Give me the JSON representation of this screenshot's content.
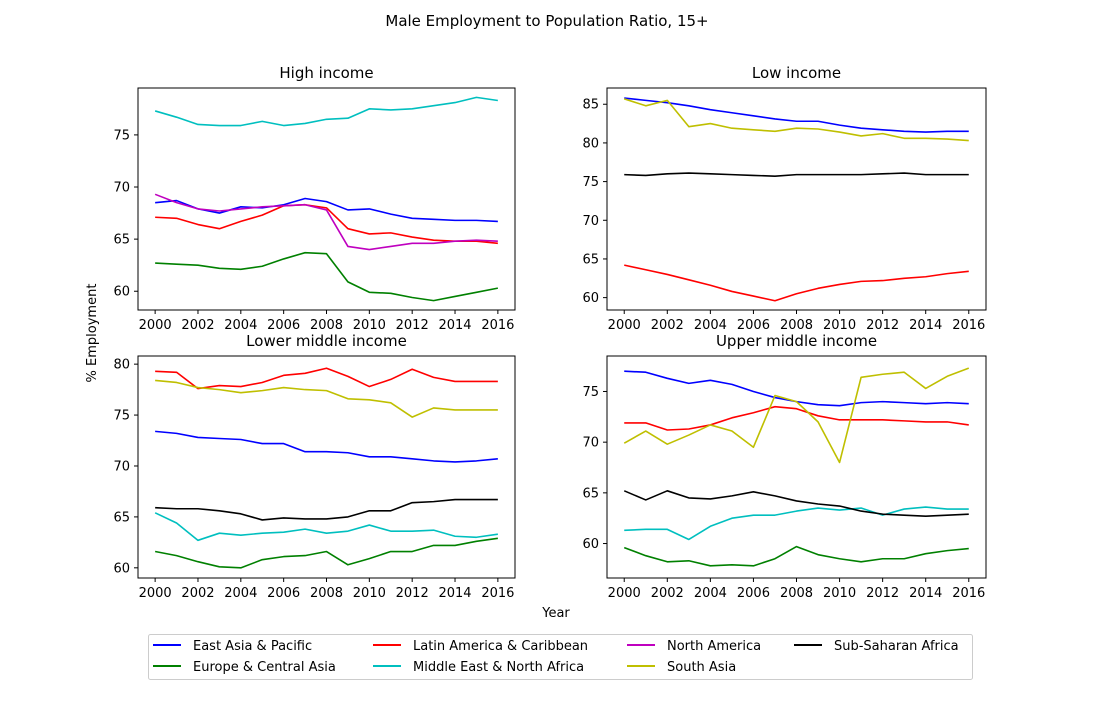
{
  "chart_data": {
    "type": "line",
    "title": "Male Employment to Population Ratio, 15+",
    "xlabel": "Year",
    "ylabel": "% Employment",
    "legend_position": "bottom",
    "legend_columns": 4,
    "legend": [
      {
        "name": "East Asia & Pacific",
        "color": "#0000ff"
      },
      {
        "name": "Europe & Central Asia",
        "color": "#008000"
      },
      {
        "name": "Latin America & Caribbean",
        "color": "#ff0000"
      },
      {
        "name": "Middle East & North Africa",
        "color": "#00bfbf"
      },
      {
        "name": "North America",
        "color": "#bf00bf"
      },
      {
        "name": "South Asia",
        "color": "#bfbf00"
      },
      {
        "name": "Sub-Saharan Africa",
        "color": "#000000"
      }
    ],
    "panels": [
      {
        "title": "High income",
        "x": [
          2000,
          2001,
          2002,
          2003,
          2004,
          2005,
          2006,
          2007,
          2008,
          2009,
          2010,
          2011,
          2012,
          2013,
          2014,
          2015,
          2016
        ],
        "xlim": [
          1999.2,
          2016.8
        ],
        "ylim": [
          58.2,
          79.5
        ],
        "yticks": [
          60,
          65,
          70,
          75
        ],
        "xticks": [
          2000,
          2002,
          2004,
          2006,
          2008,
          2010,
          2012,
          2014,
          2016
        ],
        "series": [
          {
            "name": "East Asia & Pacific",
            "values": [
              68.5,
              68.7,
              67.9,
              67.5,
              68.1,
              68.0,
              68.3,
              68.9,
              68.6,
              67.8,
              67.9,
              67.4,
              67.0,
              66.9,
              66.8,
              66.8,
              66.7
            ]
          },
          {
            "name": "Europe & Central Asia",
            "values": [
              62.7,
              62.6,
              62.5,
              62.2,
              62.1,
              62.4,
              63.1,
              63.7,
              63.6,
              60.9,
              59.9,
              59.8,
              59.4,
              59.1,
              59.5,
              59.9,
              60.3
            ]
          },
          {
            "name": "Latin America & Caribbean",
            "values": [
              67.1,
              67.0,
              66.4,
              66.0,
              66.7,
              67.3,
              68.2,
              68.3,
              68.0,
              66.0,
              65.5,
              65.6,
              65.2,
              64.9,
              64.8,
              64.8,
              64.6
            ]
          },
          {
            "name": "Middle East & North Africa",
            "values": [
              77.3,
              76.7,
              76.0,
              75.9,
              75.9,
              76.3,
              75.9,
              76.1,
              76.5,
              76.6,
              77.5,
              77.4,
              77.5,
              77.8,
              78.1,
              78.6,
              78.3
            ]
          },
          {
            "name": "North America",
            "values": [
              69.3,
              68.5,
              67.9,
              67.7,
              67.9,
              68.1,
              68.2,
              68.3,
              67.8,
              64.3,
              64.0,
              64.3,
              64.6,
              64.6,
              64.8,
              64.9,
              64.8
            ]
          }
        ]
      },
      {
        "title": "Low income",
        "x": [
          2000,
          2001,
          2002,
          2003,
          2004,
          2005,
          2006,
          2007,
          2008,
          2009,
          2010,
          2011,
          2012,
          2013,
          2014,
          2015,
          2016
        ],
        "xlim": [
          1999.2,
          2016.8
        ],
        "ylim": [
          58.4,
          87.1
        ],
        "yticks": [
          60,
          65,
          70,
          75,
          80,
          85
        ],
        "xticks": [
          2000,
          2002,
          2004,
          2006,
          2008,
          2010,
          2012,
          2014,
          2016
        ],
        "series": [
          {
            "name": "East Asia & Pacific",
            "values": [
              85.8,
              85.5,
              85.2,
              84.8,
              84.3,
              83.9,
              83.5,
              83.1,
              82.8,
              82.8,
              82.3,
              81.9,
              81.7,
              81.5,
              81.4,
              81.5,
              81.5
            ]
          },
          {
            "name": "Latin America & Caribbean",
            "values": [
              64.2,
              63.6,
              63.0,
              62.3,
              61.6,
              60.8,
              60.2,
              59.6,
              60.5,
              61.2,
              61.7,
              62.1,
              62.2,
              62.5,
              62.7,
              63.1,
              63.4
            ]
          },
          {
            "name": "South Asia",
            "values": [
              85.7,
              84.8,
              85.5,
              82.1,
              82.5,
              81.9,
              81.7,
              81.5,
              81.9,
              81.8,
              81.4,
              80.9,
              81.2,
              80.6,
              80.6,
              80.5,
              80.3
            ]
          },
          {
            "name": "Sub-Saharan Africa",
            "values": [
              75.9,
              75.8,
              76.0,
              76.1,
              76.0,
              75.9,
              75.8,
              75.7,
              75.9,
              75.9,
              75.9,
              75.9,
              76.0,
              76.1,
              75.9,
              75.9,
              75.9
            ]
          }
        ]
      },
      {
        "title": "Lower middle income",
        "x": [
          2000,
          2001,
          2002,
          2003,
          2004,
          2005,
          2006,
          2007,
          2008,
          2009,
          2010,
          2011,
          2012,
          2013,
          2014,
          2015,
          2016
        ],
        "xlim": [
          1999.2,
          2016.8
        ],
        "ylim": [
          59.0,
          80.8
        ],
        "yticks": [
          60,
          65,
          70,
          75,
          80
        ],
        "xticks": [
          2000,
          2002,
          2004,
          2006,
          2008,
          2010,
          2012,
          2014,
          2016
        ],
        "series": [
          {
            "name": "East Asia & Pacific",
            "values": [
              73.4,
              73.2,
              72.8,
              72.7,
              72.6,
              72.2,
              72.2,
              71.4,
              71.4,
              71.3,
              70.9,
              70.9,
              70.7,
              70.5,
              70.4,
              70.5,
              70.7
            ]
          },
          {
            "name": "Europe & Central Asia",
            "values": [
              61.6,
              61.2,
              60.6,
              60.1,
              60.0,
              60.8,
              61.1,
              61.2,
              61.6,
              60.3,
              60.9,
              61.6,
              61.6,
              62.2,
              62.2,
              62.6,
              62.9
            ]
          },
          {
            "name": "Latin America & Caribbean",
            "values": [
              79.3,
              79.2,
              77.6,
              77.9,
              77.8,
              78.2,
              78.9,
              79.1,
              79.6,
              78.8,
              77.8,
              78.5,
              79.5,
              78.7,
              78.3,
              78.3,
              78.3
            ]
          },
          {
            "name": "Middle East & North Africa",
            "values": [
              65.4,
              64.4,
              62.7,
              63.4,
              63.2,
              63.4,
              63.5,
              63.8,
              63.4,
              63.6,
              64.2,
              63.6,
              63.6,
              63.7,
              63.1,
              63.0,
              63.3
            ]
          },
          {
            "name": "South Asia",
            "values": [
              78.4,
              78.2,
              77.7,
              77.5,
              77.2,
              77.4,
              77.7,
              77.5,
              77.4,
              76.6,
              76.5,
              76.2,
              74.8,
              75.7,
              75.5,
              75.5,
              75.5
            ]
          },
          {
            "name": "Sub-Saharan Africa",
            "values": [
              65.9,
              65.8,
              65.8,
              65.6,
              65.3,
              64.7,
              64.9,
              64.8,
              64.8,
              65.0,
              65.6,
              65.6,
              66.4,
              66.5,
              66.7,
              66.7,
              66.7
            ]
          }
        ]
      },
      {
        "title": "Upper middle income",
        "x": [
          2000,
          2001,
          2002,
          2003,
          2004,
          2005,
          2006,
          2007,
          2008,
          2009,
          2010,
          2011,
          2012,
          2013,
          2014,
          2015,
          2016
        ],
        "xlim": [
          1999.2,
          2016.8
        ],
        "ylim": [
          56.6,
          78.5
        ],
        "yticks": [
          60,
          65,
          70,
          75
        ],
        "xticks": [
          2000,
          2002,
          2004,
          2006,
          2008,
          2010,
          2012,
          2014,
          2016
        ],
        "series": [
          {
            "name": "East Asia & Pacific",
            "values": [
              77.0,
              76.9,
              76.3,
              75.8,
              76.1,
              75.7,
              75.0,
              74.4,
              74.0,
              73.7,
              73.6,
              73.9,
              74.0,
              73.9,
              73.8,
              73.9,
              73.8
            ]
          },
          {
            "name": "Europe & Central Asia",
            "values": [
              59.6,
              58.8,
              58.2,
              58.3,
              57.8,
              57.9,
              57.8,
              58.5,
              59.7,
              58.9,
              58.5,
              58.2,
              58.5,
              58.5,
              59.0,
              59.3,
              59.5
            ]
          },
          {
            "name": "Latin America & Caribbean",
            "values": [
              71.9,
              71.9,
              71.2,
              71.3,
              71.7,
              72.4,
              72.9,
              73.5,
              73.3,
              72.6,
              72.2,
              72.2,
              72.2,
              72.1,
              72.0,
              72.0,
              71.7
            ]
          },
          {
            "name": "Middle East & North Africa",
            "values": [
              61.3,
              61.4,
              61.4,
              60.4,
              61.7,
              62.5,
              62.8,
              62.8,
              63.2,
              63.5,
              63.3,
              63.5,
              62.8,
              63.4,
              63.6,
              63.4,
              63.4
            ]
          },
          {
            "name": "South Asia",
            "values": [
              69.9,
              71.1,
              69.8,
              70.7,
              71.7,
              71.1,
              69.5,
              74.6,
              74.0,
              72.0,
              68.0,
              76.4,
              76.7,
              76.9,
              75.3,
              76.5,
              77.3
            ]
          },
          {
            "name": "Sub-Saharan Africa",
            "values": [
              65.2,
              64.3,
              65.2,
              64.5,
              64.4,
              64.7,
              65.1,
              64.7,
              64.2,
              63.9,
              63.7,
              63.2,
              62.9,
              62.8,
              62.7,
              62.8,
              62.9
            ]
          }
        ]
      }
    ]
  }
}
